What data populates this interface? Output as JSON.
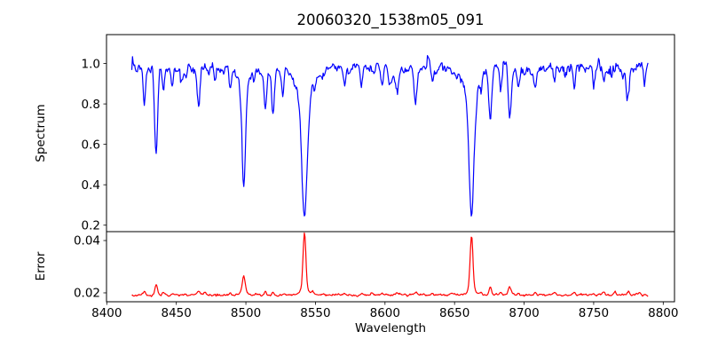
{
  "figure": {
    "background": "#ffffff",
    "axis_color": "#000000",
    "text_color": "#000000"
  },
  "chart_data": {
    "type": "line",
    "title": "20060320_1538m05_091",
    "xlabel": "Wavelength",
    "xlim": [
      8399.8,
      8808.1
    ],
    "x_ticks": [
      8400,
      8450,
      8500,
      8550,
      8600,
      8650,
      8700,
      8750,
      8800
    ],
    "x_tick_labels": [
      "8400",
      "8450",
      "8500",
      "8550",
      "8600",
      "8650",
      "8700",
      "8750",
      "8800"
    ],
    "wavelength_start": 8418,
    "wavelength_end": 8789,
    "sample_step": 0.5,
    "legend": "none",
    "grid": false,
    "panels": [
      {
        "name": "spectrum",
        "ylabel": "Spectrum",
        "color": "#0000ff",
        "ylim": [
          0.168,
          1.143
        ],
        "y_ticks": [
          0.2,
          0.4,
          0.6,
          0.8,
          1.0
        ],
        "y_tick_labels": [
          "0.2",
          "0.4",
          "0.6",
          "0.8",
          "1.0"
        ],
        "continuum": 0.975,
        "noise": {
          "std": 0.014,
          "phi": 0.68,
          "seed": 13,
          "heavy_prob": 0.035,
          "heavy_scale": 2.6,
          "ramp_from": 8690,
          "ramp_max": 1.9
        },
        "features_note": "absorption dips below continuum; columns = center_wavelength, depth, sigma, wing_depth, wing_sigma",
        "feature_sign": -1,
        "features": {
          "columns": [
            "center",
            "depth",
            "sigma",
            "wing_depth",
            "wing_sigma"
          ],
          "rows": [
            [
              8427.0,
              0.19,
              0.9,
              0,
              0
            ],
            [
              8435.5,
              0.43,
              1.1,
              0,
              0
            ],
            [
              8440.5,
              0.11,
              0.8,
              0,
              0
            ],
            [
              8447.0,
              0.09,
              0.8,
              0,
              0
            ],
            [
              8457.0,
              0.05,
              0.7,
              0,
              0
            ],
            [
              8466.0,
              0.2,
              1.0,
              0,
              0
            ],
            [
              8478.0,
              0.05,
              0.7,
              0,
              0
            ],
            [
              8488.5,
              0.08,
              0.8,
              0,
              0
            ],
            [
              8498.5,
              0.51,
              1.3,
              0.09,
              3.5
            ],
            [
              8506.0,
              0.05,
              0.7,
              0,
              0
            ],
            [
              8514.0,
              0.2,
              1.0,
              0,
              0
            ],
            [
              8519.5,
              0.23,
              1.0,
              0,
              0
            ],
            [
              8526.5,
              0.12,
              0.8,
              0,
              0
            ],
            [
              8542.1,
              0.6,
              1.9,
              0.15,
              5.5
            ],
            [
              8556.0,
              0.05,
              0.7,
              0,
              0
            ],
            [
              8571.0,
              0.09,
              0.8,
              0,
              0
            ],
            [
              8583.0,
              0.09,
              0.9,
              0,
              0
            ],
            [
              8598.0,
              0.06,
              0.8,
              0,
              0
            ],
            [
              8603.0,
              0.07,
              0.8,
              0,
              0
            ],
            [
              8608.5,
              0.11,
              0.9,
              0,
              0
            ],
            [
              8622.0,
              0.15,
              1.1,
              0,
              0
            ],
            [
              8634.0,
              0.06,
              0.8,
              0,
              0
            ],
            [
              8648.0,
              0.06,
              0.8,
              0,
              0
            ],
            [
              8662.2,
              0.58,
              1.8,
              0.14,
              5.0
            ],
            [
              8669.0,
              0.07,
              0.7,
              0,
              0
            ],
            [
              8675.7,
              0.25,
              1.1,
              0,
              0
            ],
            [
              8683.0,
              0.11,
              0.8,
              0,
              0
            ],
            [
              8689.7,
              0.25,
              1.1,
              0,
              0
            ],
            [
              8696.0,
              0.07,
              0.8,
              0,
              0
            ],
            [
              8708.0,
              0.09,
              0.9,
              0,
              0
            ],
            [
              8722.0,
              0.07,
              0.8,
              0,
              0
            ],
            [
              8736.0,
              0.08,
              0.8,
              0,
              0
            ],
            [
              8750.0,
              0.07,
              0.8,
              0,
              0
            ],
            [
              8757.0,
              0.08,
              0.8,
              0,
              0
            ],
            [
              8774.5,
              0.13,
              1.0,
              0,
              0
            ],
            [
              8786.0,
              0.08,
              0.8,
              0,
              0
            ]
          ]
        }
      },
      {
        "name": "error",
        "ylabel": "Error",
        "color": "#ff0000",
        "ylim": [
          0.0166,
          0.0434
        ],
        "y_ticks": [
          0.02,
          0.04
        ],
        "y_tick_labels": [
          "0.02",
          "0.04"
        ],
        "continuum": 0.0192,
        "noise": {
          "std": 0.0002,
          "phi": 0.6,
          "seed": 11,
          "heavy_prob": 0.02,
          "heavy_scale": 2.0,
          "ramp_from": 8740,
          "ramp_max": 1.4
        },
        "features_note": "error spikes above baseline; columns = center_wavelength, height, sigma, wing_height, wing_sigma",
        "feature_sign": 1,
        "features": {
          "columns": [
            "center",
            "height",
            "sigma",
            "wing_height",
            "wing_sigma"
          ],
          "rows": [
            [
              8427.0,
              0.0012,
              0.8,
              0,
              0
            ],
            [
              8435.5,
              0.0042,
              0.9,
              0,
              0
            ],
            [
              8440.5,
              0.001,
              0.7,
              0,
              0
            ],
            [
              8447.0,
              0.0007,
              0.7,
              0,
              0
            ],
            [
              8466.0,
              0.0014,
              1.1,
              0,
              0
            ],
            [
              8470.5,
              0.001,
              0.8,
              0,
              0
            ],
            [
              8488.5,
              0.0007,
              0.7,
              0,
              0
            ],
            [
              8498.5,
              0.0062,
              1.0,
              0.0008,
              3.0
            ],
            [
              8514.0,
              0.0013,
              0.8,
              0,
              0
            ],
            [
              8519.5,
              0.0012,
              0.8,
              0,
              0
            ],
            [
              8542.1,
              0.0215,
              1.0,
              0.0022,
              3.0
            ],
            [
              8548.0,
              0.0011,
              0.8,
              0,
              0
            ],
            [
              8571.0,
              0.0006,
              0.8,
              0,
              0
            ],
            [
              8583.0,
              0.0008,
              0.8,
              0,
              0
            ],
            [
              8598.0,
              0.0006,
              0.8,
              0,
              0
            ],
            [
              8608.5,
              0.0008,
              0.8,
              0,
              0
            ],
            [
              8622.0,
              0.001,
              0.9,
              0,
              0
            ],
            [
              8634.0,
              0.0006,
              0.8,
              0,
              0
            ],
            [
              8648.0,
              0.0007,
              0.8,
              0,
              0
            ],
            [
              8662.2,
              0.0205,
              1.0,
              0.002,
              3.0
            ],
            [
              8669.0,
              0.0008,
              0.7,
              0,
              0
            ],
            [
              8675.7,
              0.0031,
              0.9,
              0,
              0
            ],
            [
              8683.0,
              0.001,
              0.7,
              0,
              0
            ],
            [
              8689.7,
              0.0029,
              1.0,
              0,
              0
            ],
            [
              8696.0,
              0.0008,
              0.8,
              0,
              0
            ],
            [
              8708.0,
              0.001,
              0.8,
              0,
              0
            ],
            [
              8722.0,
              0.0009,
              0.8,
              0,
              0
            ],
            [
              8736.0,
              0.0011,
              0.8,
              0,
              0
            ],
            [
              8750.0,
              0.0008,
              0.8,
              0,
              0
            ],
            [
              8757.0,
              0.001,
              0.8,
              0,
              0
            ],
            [
              8765.0,
              0.0011,
              0.8,
              0,
              0
            ],
            [
              8775.0,
              0.0014,
              1.0,
              0,
              0
            ],
            [
              8783.0,
              0.001,
              0.8,
              0,
              0
            ]
          ]
        }
      }
    ]
  }
}
